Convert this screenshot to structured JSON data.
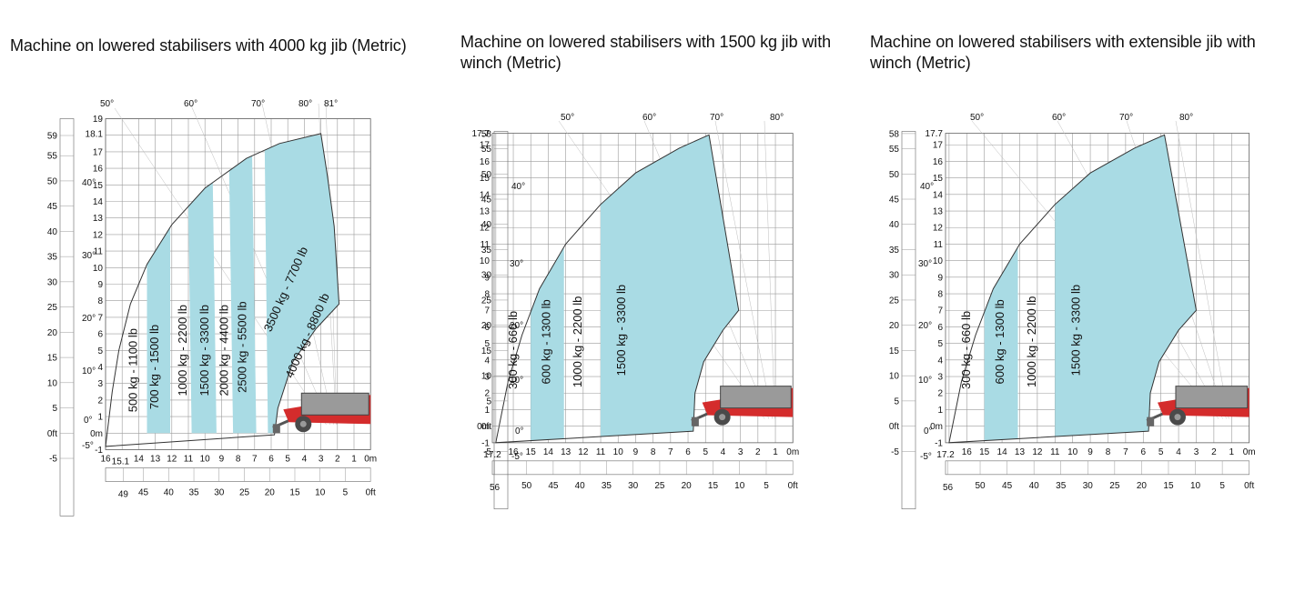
{
  "colors": {
    "band": "#a9dbe4",
    "grid": "#9b9b9b",
    "line": "#1a1a1a",
    "arc": "#333333",
    "machine": "#d42c2c"
  },
  "icons": [
    "telehandler-machine-icon"
  ],
  "panels": [
    {
      "title": "Machine on lowered stabilisers with 4000 kg jib (Metric)",
      "height_m_labels": [
        "19",
        "18.1",
        "17",
        "16",
        "15",
        "14",
        "13",
        "12",
        "11",
        "10",
        "9",
        "8",
        "7",
        "6",
        "5",
        "4",
        "3",
        "2",
        "1",
        "0m",
        "-1"
      ],
      "height_ft_labels": [
        "59",
        "55",
        "50",
        "45",
        "40",
        "35",
        "30",
        "25",
        "20",
        "15",
        "10",
        "5",
        "0ft",
        "-5"
      ],
      "reach_m_labels": [
        "16",
        "15.1",
        "14",
        "13",
        "12",
        "11",
        "10",
        "9",
        "8",
        "7",
        "6",
        "5",
        "4",
        "3",
        "2",
        "1",
        "0m"
      ],
      "reach_ft_labels": [
        "49",
        "45",
        "40",
        "35",
        "30",
        "25",
        "20",
        "15",
        "10",
        "5",
        "0ft"
      ],
      "angle_labels": [
        "50°",
        "60°",
        "70°",
        "80°",
        "81°",
        "40°",
        "30°",
        "20°",
        "10°",
        "0°",
        "-5°"
      ],
      "loads": [
        "500 kg - 1100 lb",
        "700 kg - 1500 lb",
        "1000 kg - 2200 lb",
        "1500 kg - 3300 lb",
        "2000 kg - 4400 lb",
        "2500 kg - 5500 lb",
        "3500 kg - 7700 lb",
        "4000 kg - 8800 lb"
      ]
    },
    {
      "title": "Machine on lowered stabilisers with 1500 kg jib with winch (Metric)",
      "height_m_labels": [
        "17.7",
        "17",
        "16",
        "15",
        "14",
        "13",
        "12",
        "11",
        "10",
        "9",
        "8",
        "7",
        "6",
        "5",
        "4",
        "3",
        "2",
        "1",
        "0m",
        "-1"
      ],
      "height_ft_labels": [
        "58",
        "55",
        "50",
        "45",
        "40",
        "35",
        "30",
        "25",
        "20",
        "15",
        "10",
        "5",
        "0ft",
        "-5"
      ],
      "reach_m_labels": [
        "17.2",
        "16",
        "15",
        "14",
        "13",
        "12",
        "11",
        "10",
        "9",
        "8",
        "7",
        "6",
        "5",
        "4",
        "3",
        "2",
        "1",
        "0m"
      ],
      "reach_ft_labels": [
        "56",
        "50",
        "45",
        "40",
        "35",
        "30",
        "25",
        "20",
        "15",
        "10",
        "5",
        "0ft"
      ],
      "angle_labels": [
        "50°",
        "60°",
        "70°",
        "80°",
        "40°",
        "30°",
        "20°",
        "10°",
        "0°",
        "-5°"
      ],
      "loads": [
        "300 kg - 660 lb",
        "600 kg - 1300 lb",
        "1000 kg - 2200 lb",
        "1500 kg - 3300 lb"
      ]
    },
    {
      "title": "Machine on lowered stabilisers with extensible jib with winch (Metric)",
      "height_m_labels": [
        "17.7",
        "17",
        "16",
        "15",
        "14",
        "13",
        "12",
        "11",
        "10",
        "9",
        "8",
        "7",
        "6",
        "5",
        "4",
        "3",
        "2",
        "1",
        "0m",
        "-1"
      ],
      "height_ft_labels": [
        "58",
        "55",
        "50",
        "45",
        "40",
        "35",
        "30",
        "25",
        "20",
        "15",
        "10",
        "5",
        "0ft",
        "-5"
      ],
      "reach_m_labels": [
        "17.2",
        "16",
        "15",
        "14",
        "13",
        "12",
        "11",
        "10",
        "9",
        "8",
        "7",
        "6",
        "5",
        "4",
        "3",
        "2",
        "1",
        "0m"
      ],
      "reach_ft_labels": [
        "56",
        "50",
        "45",
        "40",
        "35",
        "30",
        "25",
        "20",
        "15",
        "10",
        "5",
        "0ft"
      ],
      "angle_labels": [
        "50°",
        "60°",
        "70°",
        "80°",
        "40°",
        "30°",
        "20°",
        "10°",
        "0°",
        "-5°"
      ],
      "loads": [
        "300 kg - 660 lb",
        "600 kg - 1300 lb",
        "1000 kg - 2200 lb",
        "1500 kg - 3300 lb"
      ]
    }
  ]
}
